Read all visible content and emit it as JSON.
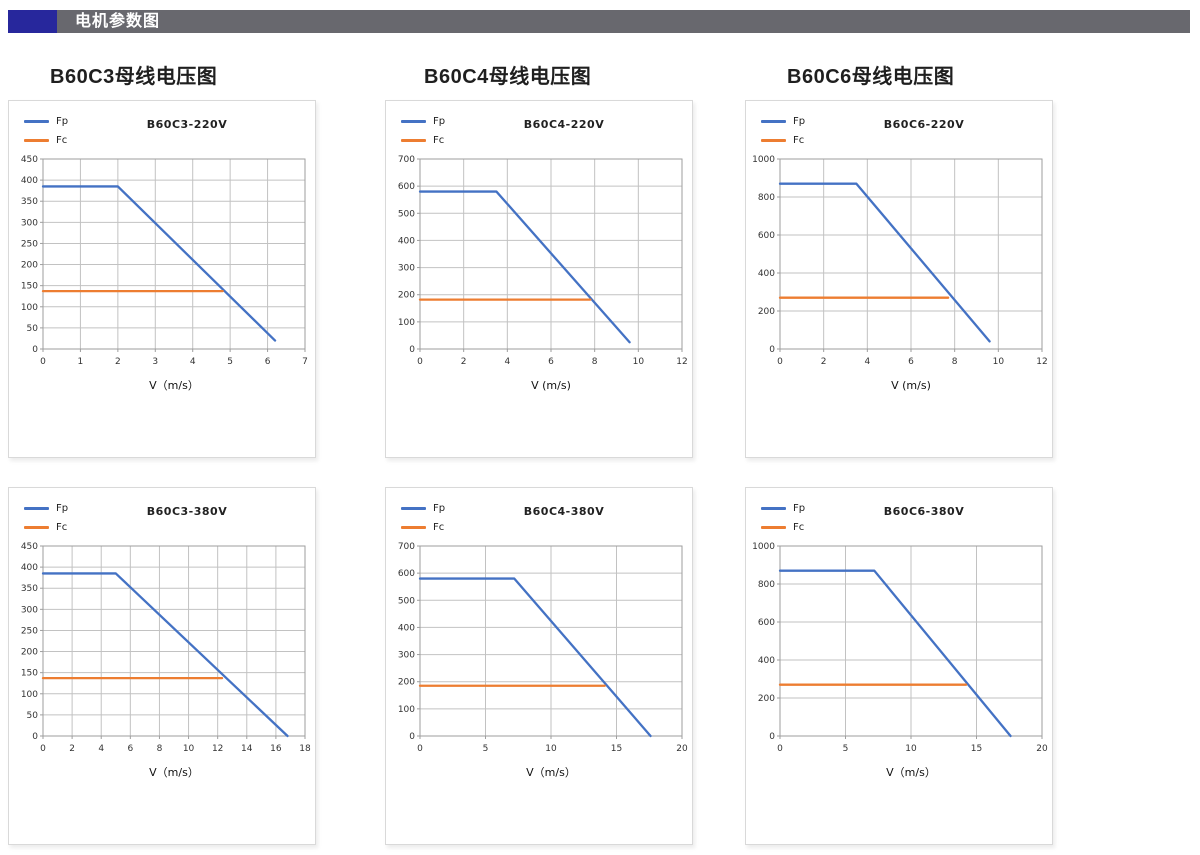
{
  "header": {
    "title": "电机参数图"
  },
  "colors": {
    "header_accent": "#27279C",
    "header_bar": "#68686E",
    "header_text": "#FFFFFF",
    "fp_line": "#4472C4",
    "fc_line": "#ED7D31",
    "grid": "#C2C2C2",
    "axis": "#9E9E9E"
  },
  "section_titles": [
    {
      "label": "B60C3母线电压图"
    },
    {
      "label": "B60C4母线电压图"
    },
    {
      "label": "B60C6母线电压图"
    }
  ],
  "legend": {
    "fp": "Fp",
    "fc": "Fc"
  },
  "chart_data": [
    {
      "type": "line",
      "title": "B60C3-220V",
      "xlabel": "V（m/s）",
      "xlim": [
        0,
        7
      ],
      "ylim": [
        0,
        450
      ],
      "xticks": [
        0,
        1,
        2,
        3,
        4,
        5,
        6,
        7
      ],
      "yticks": [
        0,
        50,
        100,
        150,
        200,
        250,
        300,
        350,
        400,
        450
      ],
      "grid": true,
      "legend_position": "top-left",
      "series": [
        {
          "name": "Fp",
          "color": "#4472C4",
          "points": [
            [
              0,
              385
            ],
            [
              2,
              385
            ],
            [
              6.2,
              20
            ]
          ]
        },
        {
          "name": "Fc",
          "color": "#ED7D31",
          "points": [
            [
              0,
              137
            ],
            [
              4.8,
              137
            ]
          ]
        }
      ]
    },
    {
      "type": "line",
      "title": "B60C4-220V",
      "xlabel": "V (m/s)",
      "xlim": [
        0,
        12
      ],
      "ylim": [
        0,
        700
      ],
      "xticks": [
        0,
        2,
        4,
        6,
        8,
        10,
        12
      ],
      "yticks": [
        0,
        100,
        200,
        300,
        400,
        500,
        600,
        700
      ],
      "grid": true,
      "legend_position": "top-left",
      "series": [
        {
          "name": "Fp",
          "color": "#4472C4",
          "points": [
            [
              0,
              580
            ],
            [
              3.5,
              580
            ],
            [
              9.6,
              25
            ]
          ]
        },
        {
          "name": "Fc",
          "color": "#ED7D31",
          "points": [
            [
              0,
              182
            ],
            [
              7.8,
              182
            ]
          ]
        }
      ]
    },
    {
      "type": "line",
      "title": "B60C6-220V",
      "xlabel": "V (m/s)",
      "xlim": [
        0,
        12
      ],
      "ylim": [
        0,
        1000
      ],
      "xticks": [
        0,
        2,
        4,
        6,
        8,
        10,
        12
      ],
      "yticks": [
        0,
        200,
        400,
        600,
        800,
        1000
      ],
      "grid": true,
      "legend_position": "top-left",
      "series": [
        {
          "name": "Fp",
          "color": "#4472C4",
          "points": [
            [
              0,
              870
            ],
            [
              3.5,
              870
            ],
            [
              9.6,
              40
            ]
          ]
        },
        {
          "name": "Fc",
          "color": "#ED7D31",
          "points": [
            [
              0,
              270
            ],
            [
              7.7,
              270
            ]
          ]
        }
      ]
    },
    {
      "type": "line",
      "title": "B60C3-380V",
      "xlabel": "V（m/s）",
      "xlim": [
        0,
        18
      ],
      "ylim": [
        0,
        450
      ],
      "xticks": [
        0,
        2,
        4,
        6,
        8,
        10,
        12,
        14,
        16,
        18
      ],
      "yticks": [
        0,
        50,
        100,
        150,
        200,
        250,
        300,
        350,
        400,
        450
      ],
      "grid": true,
      "legend_position": "top-left",
      "series": [
        {
          "name": "Fp",
          "color": "#4472C4",
          "points": [
            [
              0,
              385
            ],
            [
              5,
              385
            ],
            [
              16.8,
              0
            ]
          ]
        },
        {
          "name": "Fc",
          "color": "#ED7D31",
          "points": [
            [
              0,
              137
            ],
            [
              12.3,
              137
            ]
          ]
        }
      ]
    },
    {
      "type": "line",
      "title": "B60C4-380V",
      "xlabel": "V（m/s）",
      "xlim": [
        0,
        20
      ],
      "ylim": [
        0,
        700
      ],
      "xticks": [
        0,
        5,
        10,
        15,
        20
      ],
      "yticks": [
        0,
        100,
        200,
        300,
        400,
        500,
        600,
        700
      ],
      "grid": true,
      "legend_position": "top-left",
      "series": [
        {
          "name": "Fp",
          "color": "#4472C4",
          "points": [
            [
              0,
              580
            ],
            [
              7.2,
              580
            ],
            [
              17.6,
              0
            ]
          ]
        },
        {
          "name": "Fc",
          "color": "#ED7D31",
          "points": [
            [
              0,
              185
            ],
            [
              14.1,
              185
            ]
          ]
        }
      ]
    },
    {
      "type": "line",
      "title": "B60C6-380V",
      "xlabel": "V（m/s）",
      "xlim": [
        0,
        20
      ],
      "ylim": [
        0,
        1000
      ],
      "xticks": [
        0,
        5,
        10,
        15,
        20
      ],
      "yticks": [
        0,
        200,
        400,
        600,
        800,
        1000
      ],
      "grid": true,
      "legend_position": "top-left",
      "series": [
        {
          "name": "Fp",
          "color": "#4472C4",
          "points": [
            [
              0,
              870
            ],
            [
              7.2,
              870
            ],
            [
              17.6,
              0
            ]
          ]
        },
        {
          "name": "Fc",
          "color": "#ED7D31",
          "points": [
            [
              0,
              270
            ],
            [
              14.2,
              270
            ]
          ]
        }
      ]
    }
  ]
}
